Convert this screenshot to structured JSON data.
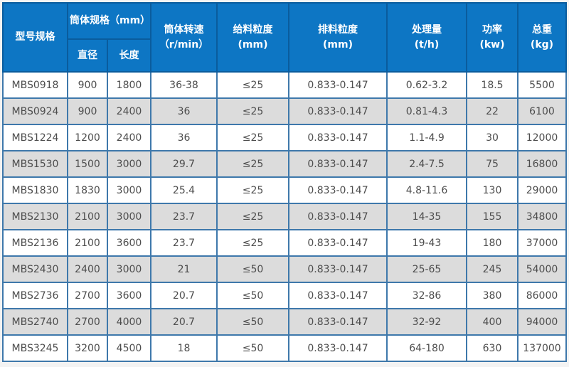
{
  "colors": {
    "page_bg": "#f3f3f3",
    "outer_border": "#2e73ae",
    "header_bg": "#0d76c4",
    "header_border": "#0a5c9d",
    "header_text": "#ffffff",
    "grid_border": "#3e78ab",
    "cell_text": "#4d4d4d",
    "row_bg": "#ffffff",
    "row_alt_bg": "#dcdcdc"
  },
  "chart_data": {
    "type": "table",
    "title": "",
    "header": {
      "model": "型号规格",
      "cylinder_spec": "筒体规格（mm）",
      "diameter": "直径",
      "length": "长度",
      "speed": "筒体转速\n（r/min）",
      "feed_size": "给料粒度\n(mm)",
      "discharge_size": "排料粒度\n(mm)",
      "capacity": "处理量\n(t/h)",
      "power": "功率\n(kw)",
      "weight": "总重\n(kg)"
    },
    "rows": [
      [
        "MBS0918",
        "900",
        "1800",
        "36-38",
        "≤25",
        "0.833-0.147",
        "0.62-3.2",
        "18.5",
        "5500"
      ],
      [
        "MBS0924",
        "900",
        "2400",
        "36",
        "≤25",
        "0.833-0.147",
        "0.81-4.3",
        "22",
        "6100"
      ],
      [
        "MBS1224",
        "1200",
        "2400",
        "36",
        "≤25",
        "0.833-0.147",
        "1.1-4.9",
        "30",
        "12000"
      ],
      [
        "MBS1530",
        "1500",
        "3000",
        "29.7",
        "≤25",
        "0.833-0.147",
        "2.4-7.5",
        "75",
        "16800"
      ],
      [
        "MBS1830",
        "1830",
        "3000",
        "25.4",
        "≤25",
        "0.833-0.147",
        "4.8-11.6",
        "130",
        "29000"
      ],
      [
        "MBS2130",
        "2100",
        "3000",
        "23.7",
        "≤25",
        "0.833-0.147",
        "14-35",
        "155",
        "34800"
      ],
      [
        "MBS2136",
        "2100",
        "3600",
        "23.7",
        "≤25",
        "0.833-0.147",
        "19-43",
        "180",
        "37000"
      ],
      [
        "MBS2430",
        "2400",
        "3000",
        "21",
        "≤50",
        "0.833-0.147",
        "25-65",
        "245",
        "54000"
      ],
      [
        "MBS2736",
        "2700",
        "3600",
        "20.7",
        "≤50",
        "0.833-0.147",
        "32-86",
        "380",
        "86000"
      ],
      [
        "MBS2740",
        "2700",
        "4000",
        "20.7",
        "≤50",
        "0.833-0.147",
        "32-92",
        "400",
        "94000"
      ],
      [
        "MBS3245",
        "3200",
        "4500",
        "18",
        "≤50",
        "0.833-0.147",
        "64-180",
        "630",
        "137000"
      ]
    ]
  }
}
